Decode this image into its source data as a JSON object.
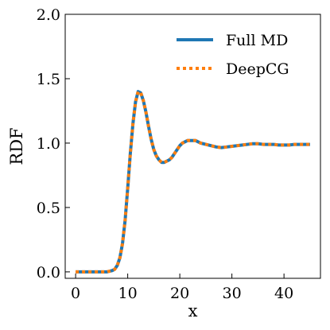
{
  "chart_data": {
    "type": "line",
    "title": "",
    "xlabel": "x",
    "ylabel": "RDF",
    "xlim": [
      -2,
      47
    ],
    "ylim": [
      -0.05,
      2.0
    ],
    "xticks": [
      0,
      10,
      20,
      30,
      40
    ],
    "yticks": [
      0.0,
      0.5,
      1.0,
      1.5,
      2.0
    ],
    "xtick_labels": [
      "0",
      "10",
      "20",
      "30",
      "40"
    ],
    "ytick_labels": [
      "0.0",
      "0.5",
      "1.0",
      "1.5",
      "2.0"
    ],
    "grid": false,
    "legend_position": "top-right",
    "series": [
      {
        "name": "Full MD",
        "color": "#1f77b4",
        "style": "solid",
        "x": [
          0,
          1,
          2,
          3,
          4,
          5,
          6,
          7,
          7.5,
          8,
          8.5,
          9,
          9.5,
          10,
          10.5,
          11,
          11.5,
          12,
          12.5,
          13,
          13.5,
          14,
          14.5,
          15,
          15.5,
          16,
          16.5,
          17,
          17.5,
          18,
          18.5,
          19,
          19.5,
          20,
          20.5,
          21,
          21.5,
          22,
          22.5,
          23,
          23.5,
          24,
          25,
          26,
          27,
          28,
          29,
          30,
          31,
          32,
          33,
          34,
          35,
          36,
          37,
          38,
          39,
          40,
          41,
          42,
          43,
          44,
          45
        ],
        "y": [
          0,
          0,
          0,
          0,
          0,
          0,
          0,
          0.01,
          0.02,
          0.05,
          0.11,
          0.22,
          0.4,
          0.65,
          0.92,
          1.15,
          1.32,
          1.4,
          1.39,
          1.33,
          1.24,
          1.13,
          1.03,
          0.95,
          0.9,
          0.87,
          0.85,
          0.85,
          0.86,
          0.87,
          0.89,
          0.92,
          0.95,
          0.98,
          1.0,
          1.01,
          1.02,
          1.02,
          1.02,
          1.02,
          1.01,
          1.0,
          0.99,
          0.98,
          0.97,
          0.965,
          0.97,
          0.975,
          0.98,
          0.985,
          0.99,
          0.995,
          0.995,
          0.99,
          0.99,
          0.99,
          0.985,
          0.985,
          0.985,
          0.99,
          0.99,
          0.99,
          0.99
        ]
      },
      {
        "name": "DeepCG",
        "color": "#ff7f0e",
        "style": "dotted",
        "x": [
          0,
          1,
          2,
          3,
          4,
          5,
          6,
          7,
          7.5,
          8,
          8.5,
          9,
          9.5,
          10,
          10.5,
          11,
          11.5,
          12,
          12.5,
          13,
          13.5,
          14,
          14.5,
          15,
          15.5,
          16,
          16.5,
          17,
          17.5,
          18,
          18.5,
          19,
          19.5,
          20,
          20.5,
          21,
          21.5,
          22,
          22.5,
          23,
          23.5,
          24,
          25,
          26,
          27,
          28,
          29,
          30,
          31,
          32,
          33,
          34,
          35,
          36,
          37,
          38,
          39,
          40,
          41,
          42,
          43,
          44,
          45
        ],
        "y": [
          0,
          0,
          0,
          0,
          0,
          0,
          0,
          0.01,
          0.02,
          0.05,
          0.11,
          0.22,
          0.4,
          0.65,
          0.92,
          1.15,
          1.32,
          1.4,
          1.39,
          1.33,
          1.24,
          1.13,
          1.03,
          0.95,
          0.9,
          0.87,
          0.85,
          0.85,
          0.86,
          0.87,
          0.89,
          0.92,
          0.95,
          0.98,
          1.0,
          1.01,
          1.02,
          1.02,
          1.02,
          1.02,
          1.01,
          1.0,
          0.99,
          0.98,
          0.97,
          0.965,
          0.97,
          0.975,
          0.98,
          0.985,
          0.99,
          0.995,
          0.995,
          0.99,
          0.99,
          0.99,
          0.985,
          0.985,
          0.985,
          0.99,
          0.99,
          0.99,
          0.99
        ]
      }
    ]
  }
}
